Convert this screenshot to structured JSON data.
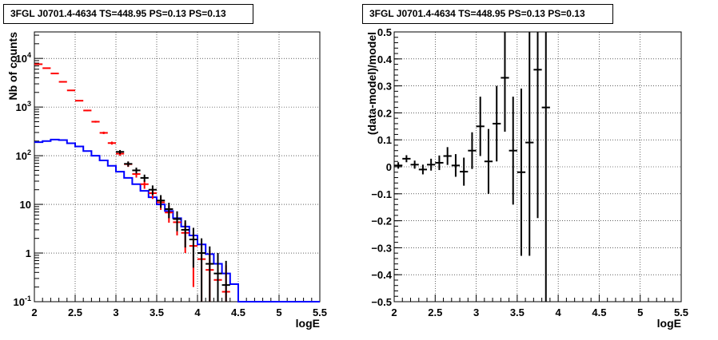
{
  "chart_data": [
    {
      "type": "histogram",
      "title": "3FGL J0701.4-4634 TS=448.95 PS=0.13 PS=0.13",
      "xlabel": "logE",
      "ylabel": "Nb of counts",
      "xlim": [
        2,
        5.5
      ],
      "ylim": [
        0.1,
        35000
      ],
      "yscale": "log",
      "grid": true,
      "xticks": [
        "2",
        "2.5",
        "3",
        "3.5",
        "4",
        "4.5",
        "5",
        "5.5"
      ],
      "yticks": [
        {
          "value": 0.1,
          "base": "10",
          "exp": "-1"
        },
        {
          "value": 1,
          "label": "1"
        },
        {
          "value": 10,
          "label": "10"
        },
        {
          "value": 100,
          "base": "10",
          "exp": "2"
        },
        {
          "value": 1000,
          "base": "10",
          "exp": "3"
        },
        {
          "value": 10000,
          "base": "10",
          "exp": "4"
        }
      ],
      "series": [
        {
          "color": "#0000ff",
          "style": "step",
          "x_edges": [
            2,
            2.1,
            2.2,
            2.3,
            2.4,
            2.5,
            2.6,
            2.7,
            2.8,
            2.9,
            3,
            3.1,
            3.2,
            3.3,
            3.4,
            3.5,
            3.6,
            3.7,
            3.8,
            3.9,
            4,
            4.1,
            4.2,
            4.3,
            4.4,
            4.5,
            4.6,
            4.7,
            4.8,
            4.9,
            5,
            5.1,
            5.2,
            5.3,
            5.4,
            5.5
          ],
          "values": [
            190,
            200,
            215,
            210,
            180,
            155,
            125,
            100,
            80,
            62,
            47,
            35,
            26,
            19,
            14,
            10,
            7.3,
            5.2,
            3.5,
            2.3,
            1.5,
            0.95,
            0.6,
            0.38,
            0.23,
            0.1,
            0.1,
            0.1,
            0.1,
            0.1,
            0.1,
            0.1,
            0.1,
            0.1,
            0.1
          ]
        },
        {
          "color": "#ff0000",
          "style": "errorbar",
          "x": [
            2.05,
            2.15,
            2.25,
            2.35,
            2.45,
            2.55,
            2.65,
            2.75,
            2.85,
            2.95,
            3.05,
            3.15,
            3.25,
            3.35,
            3.45,
            3.55,
            3.65,
            3.75,
            3.85,
            3.95,
            4.05,
            4.15,
            4.25,
            4.35
          ],
          "y": [
            7600,
            6300,
            4900,
            3300,
            2200,
            1350,
            850,
            500,
            295,
            182,
            110,
            67,
            42,
            26,
            17,
            11,
            6.8,
            4.3,
            2.6,
            1.4,
            0.75,
            0.45,
            0.28,
            0.16
          ],
          "yerr": [
            90,
            80,
            70,
            58,
            47,
            37,
            29,
            22,
            17,
            13,
            10.5,
            8.2,
            6.5,
            5.1,
            4.1,
            3.3,
            2.6,
            2.0,
            1.6,
            1.2,
            0.87,
            0.67,
            0.53,
            0.4
          ]
        },
        {
          "color": "#000000",
          "style": "errorbar",
          "x": [
            3.05,
            3.15,
            3.25,
            3.35,
            3.45,
            3.55,
            3.65,
            3.75,
            3.85,
            3.95,
            4.05,
            4.15,
            4.25,
            4.35
          ],
          "y": [
            120,
            68,
            50,
            35,
            20,
            12,
            8,
            5,
            3,
            1.9,
            1.0,
            0.6,
            0.38,
            0.22
          ],
          "yerr": [
            11,
            8.2,
            7,
            5.9,
            4.5,
            3.5,
            2.8,
            2.2,
            1.7,
            1.4,
            1.0,
            0.77,
            0.62,
            0.47
          ]
        }
      ]
    },
    {
      "type": "errorbar",
      "title": "3FGL J0701.4-4634 TS=448.95 PS=0.13 PS=0.13",
      "xlabel": "logE",
      "ylabel": "(data-model)/model",
      "xlim": [
        2,
        5.5
      ],
      "ylim": [
        -0.5,
        0.5
      ],
      "grid": true,
      "xticks": [
        "2",
        "2.5",
        "3",
        "3.5",
        "4",
        "4.5",
        "5",
        "5.5"
      ],
      "yticks": [
        "−0.5",
        "−0.4",
        "−0.3",
        "−0.2",
        "−0.1",
        "0",
        "0.1",
        "0.2",
        "0.3",
        "0.4",
        "0.5"
      ],
      "series": [
        {
          "color": "#000000",
          "x": [
            2.05,
            2.15,
            2.25,
            2.35,
            2.45,
            2.55,
            2.65,
            2.75,
            2.85,
            2.95,
            3.05,
            3.15,
            3.25,
            3.35,
            3.45,
            3.55,
            3.65,
            3.75,
            3.85
          ],
          "y": [
            0.005,
            0.03,
            0.008,
            -0.01,
            0.008,
            0.015,
            0.04,
            0.005,
            -0.018,
            0.06,
            0.15,
            0.02,
            0.16,
            0.33,
            0.06,
            -0.02,
            0.09,
            0.36,
            0.22
          ],
          "yerr": [
            0.012,
            0.013,
            0.015,
            0.018,
            0.022,
            0.027,
            0.033,
            0.042,
            0.052,
            0.068,
            0.11,
            0.12,
            0.14,
            0.2,
            0.2,
            0.31,
            0.42,
            0.55,
            0.8
          ]
        }
      ]
    }
  ]
}
